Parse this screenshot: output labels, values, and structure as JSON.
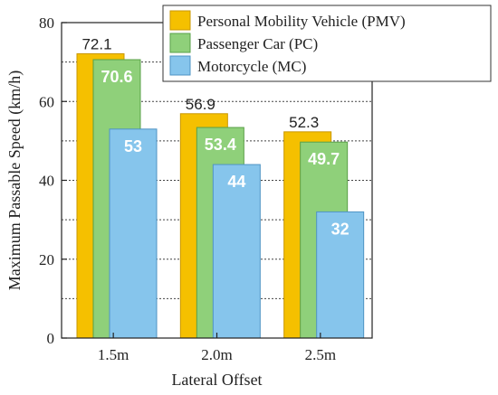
{
  "chart_data": {
    "type": "bar",
    "categories": [
      "1.5m",
      "2.0m",
      "2.5m"
    ],
    "series": [
      {
        "name": "Personal Mobility Vehicle (PMV)",
        "values": [
          72.1,
          56.9,
          52.3
        ],
        "color": "#F5C000",
        "stroke": "#C99700"
      },
      {
        "name": "Passenger Car (PC)",
        "values": [
          70.6,
          53.4,
          49.7
        ],
        "color": "#8FD07A",
        "stroke": "#5AA048"
      },
      {
        "name": "Motorcycle (MC)",
        "values": [
          53,
          44,
          32
        ],
        "color": "#86C5EC",
        "stroke": "#4F94C4"
      }
    ],
    "value_labels": [
      [
        "72.1",
        "56.9",
        "52.3"
      ],
      [
        "70.6",
        "53.4",
        "49.7"
      ],
      [
        "53",
        "44",
        "32"
      ]
    ],
    "xlabel": "Lateral Offset",
    "ylabel": "Maximum Passable Speed (km/h)",
    "ylim": [
      0,
      80
    ],
    "yticks": [
      0,
      20,
      40,
      60,
      80
    ],
    "grid": "dotted horizontal every 10",
    "legend_position": "top-right"
  }
}
